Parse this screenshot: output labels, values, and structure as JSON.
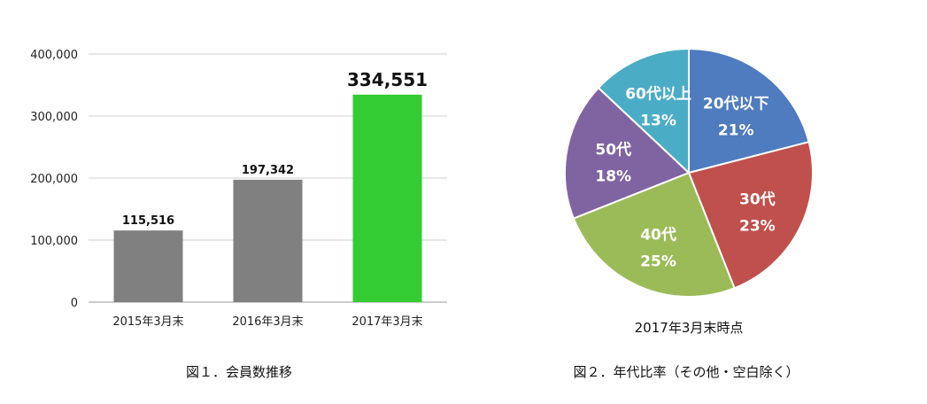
{
  "chart_data": [
    {
      "type": "bar",
      "categories": [
        "2015年3月末",
        "2016年3月末",
        "2017年3月末"
      ],
      "values": [
        115516,
        197342,
        334551
      ],
      "value_labels": [
        "115,516",
        "197,342",
        "334,551"
      ],
      "ylim": [
        0,
        400000
      ],
      "yticks": [
        0,
        100000,
        200000,
        300000,
        400000
      ],
      "ytick_labels": [
        "0",
        "100,000",
        "200,000",
        "300,000",
        "400,000"
      ],
      "colors": [
        "#808080",
        "#808080",
        "#33cc33"
      ],
      "grid": true,
      "caption": "図１．会員数推移"
    },
    {
      "type": "pie",
      "slices": [
        {
          "label": "20代以下",
          "value": 21,
          "pct_label": "21%",
          "color": "#4f7bbf"
        },
        {
          "label": "30代",
          "value": 23,
          "pct_label": "23%",
          "color": "#c0504d"
        },
        {
          "label": "40代",
          "value": 25,
          "pct_label": "25%",
          "color": "#9bbb59"
        },
        {
          "label": "50代",
          "value": 18,
          "pct_label": "18%",
          "color": "#8064a2"
        },
        {
          "label": "60代以上",
          "value": 13,
          "pct_label": "13%",
          "color": "#4bacc6"
        }
      ],
      "subtitle": "2017年3月末時点",
      "caption": "図２．年代比率（その他・空白除く）"
    }
  ]
}
